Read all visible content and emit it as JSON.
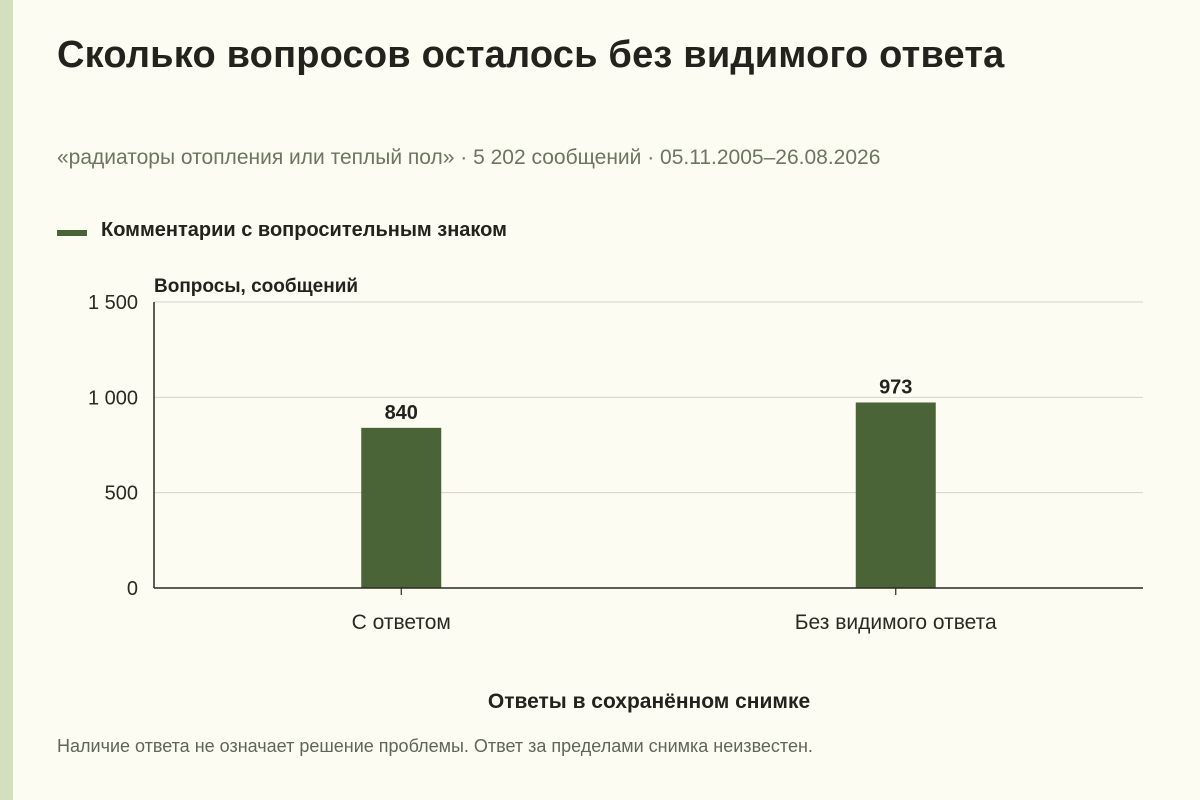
{
  "title": "Сколько вопросов осталось без видимого ответа",
  "subtitle": "«радиаторы отопления или теплый пол» · 5 202 сообщений · 05.11.2005–26.08.2026",
  "footnote": "Наличие ответа не означает решение проблемы. Ответ за пределами снимка неизвестен.",
  "colors": {
    "bar": "#4a6438",
    "grid": "#d4d4c8",
    "axis": "#2a2a22",
    "background": "#fdfcf3",
    "stripe": "#d3dfbe"
  },
  "chart_data": {
    "type": "bar",
    "categories": [
      "С ответом",
      "Без видимого ответа"
    ],
    "series": [
      {
        "name": "Комментарии с вопросительным знаком",
        "values": [
          840,
          973
        ]
      }
    ],
    "value_labels": [
      "840",
      "973"
    ],
    "ylabel": "Вопросы, сообщений",
    "xlabel": "Ответы в сохранённом снимке",
    "ylim": [
      0,
      1500
    ],
    "yticks": [
      0,
      500,
      1000,
      1500
    ],
    "ytick_labels": [
      "0",
      "500",
      "1 000",
      "1 500"
    ],
    "grid": true,
    "legend_position": "top-left"
  }
}
